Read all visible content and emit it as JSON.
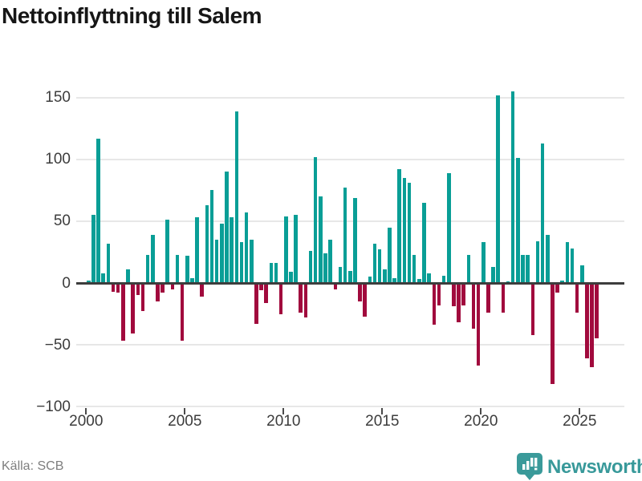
{
  "title": "Nettoinflyttning till Salem",
  "footer": {
    "source": "Källa: SCB",
    "logo_text": "Newsworthy"
  },
  "chart_data": {
    "type": "bar",
    "title": "Nettoinflyttning till Salem",
    "xlabel": "",
    "ylabel": "",
    "x_start": "2000Q1",
    "frequency": "quarterly",
    "values": [
      2,
      55,
      117,
      8,
      32,
      -7,
      -8,
      -47,
      11,
      -41,
      -10,
      -23,
      23,
      39,
      -15,
      -8,
      51,
      -5,
      23,
      -47,
      22,
      4,
      53,
      -11,
      63,
      75,
      35,
      48,
      90,
      53,
      139,
      33,
      57,
      35,
      -33,
      -6,
      -16,
      16,
      16,
      -25,
      54,
      9,
      55,
      -24,
      -28,
      26,
      102,
      70,
      24,
      35,
      -5,
      13,
      77,
      10,
      69,
      -15,
      -27,
      5,
      32,
      27,
      11,
      45,
      4,
      92,
      85,
      81,
      23,
      3,
      65,
      8,
      -34,
      -18,
      6,
      89,
      -19,
      -32,
      -18,
      23,
      -37,
      -67,
      33,
      -24,
      13,
      152,
      -24,
      1,
      155,
      101,
      23,
      23,
      -42,
      34,
      113,
      39,
      -82,
      -8,
      2,
      33,
      28,
      -24,
      14,
      -61,
      -68,
      -45
    ],
    "y_ticks": [
      {
        "v": 150,
        "label": "150"
      },
      {
        "v": 100,
        "label": "100"
      },
      {
        "v": 50,
        "label": "50"
      },
      {
        "v": 0,
        "label": "0"
      },
      {
        "v": -50,
        "label": "−50"
      },
      {
        "v": -100,
        "label": "−100"
      }
    ],
    "x_ticks": [
      {
        "v": 2000,
        "label": "2000"
      },
      {
        "v": 2005,
        "label": "2005"
      },
      {
        "v": 2010,
        "label": "2010"
      },
      {
        "v": 2015,
        "label": "2015"
      },
      {
        "v": 2020,
        "label": "2020"
      },
      {
        "v": 2025,
        "label": "2025"
      }
    ],
    "ylim": [
      -100,
      158
    ],
    "grid": true,
    "legend": "none",
    "positive_color": "#099e96",
    "negative_color": "#a10a3d",
    "zero_line_color": "#3d3d3d",
    "gridline_color": "#e7e7e7",
    "logo_color": "#3a9a9a"
  }
}
